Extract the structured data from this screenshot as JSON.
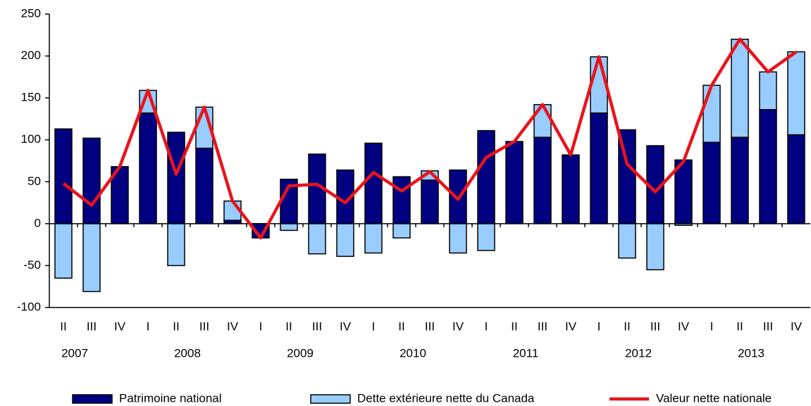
{
  "chart_data": {
    "type": "bar",
    "categories": [
      "II",
      "III",
      "IV",
      "I",
      "II",
      "III",
      "IV",
      "I",
      "II",
      "III",
      "IV",
      "I",
      "II",
      "III",
      "IV",
      "I",
      "II",
      "III",
      "IV",
      "I",
      "II",
      "III",
      "IV",
      "I",
      "II",
      "III",
      "IV"
    ],
    "years": [
      "2007",
      "2008",
      "2009",
      "2010",
      "2011",
      "2012",
      "2013"
    ],
    "series": [
      {
        "name": "Patrimoine national",
        "color": "#000080",
        "type": "bar",
        "values": [
          113,
          102,
          68,
          132,
          109,
          90,
          4,
          -17,
          53,
          83,
          64,
          96,
          56,
          52,
          64,
          111,
          98,
          103,
          82,
          132,
          112,
          93,
          76,
          97,
          103,
          136,
          106
        ]
      },
      {
        "name": "Dette extérieure nette du Canada",
        "color": "#99ccff",
        "type": "bar",
        "values": [
          -65,
          -81,
          0,
          27,
          -50,
          49,
          23,
          0,
          -8,
          -36,
          -39,
          -35,
          -17,
          11,
          -35,
          -32,
          0,
          39,
          0,
          67,
          -41,
          -55,
          -2,
          68,
          117,
          45,
          99
        ]
      },
      {
        "name": "Valeur nette nationale",
        "color": "#e8141c",
        "type": "line",
        "values": [
          48,
          22,
          68,
          159,
          59,
          139,
          27,
          -17,
          45,
          47,
          25,
          61,
          39,
          62,
          29,
          79,
          98,
          142,
          82,
          199,
          71,
          38,
          74,
          165,
          220,
          181,
          205
        ]
      }
    ],
    "ylim": [
      -100,
      250
    ],
    "yticks": [
      -100,
      -50,
      0,
      50,
      100,
      150,
      200,
      250
    ],
    "stacked": true
  }
}
